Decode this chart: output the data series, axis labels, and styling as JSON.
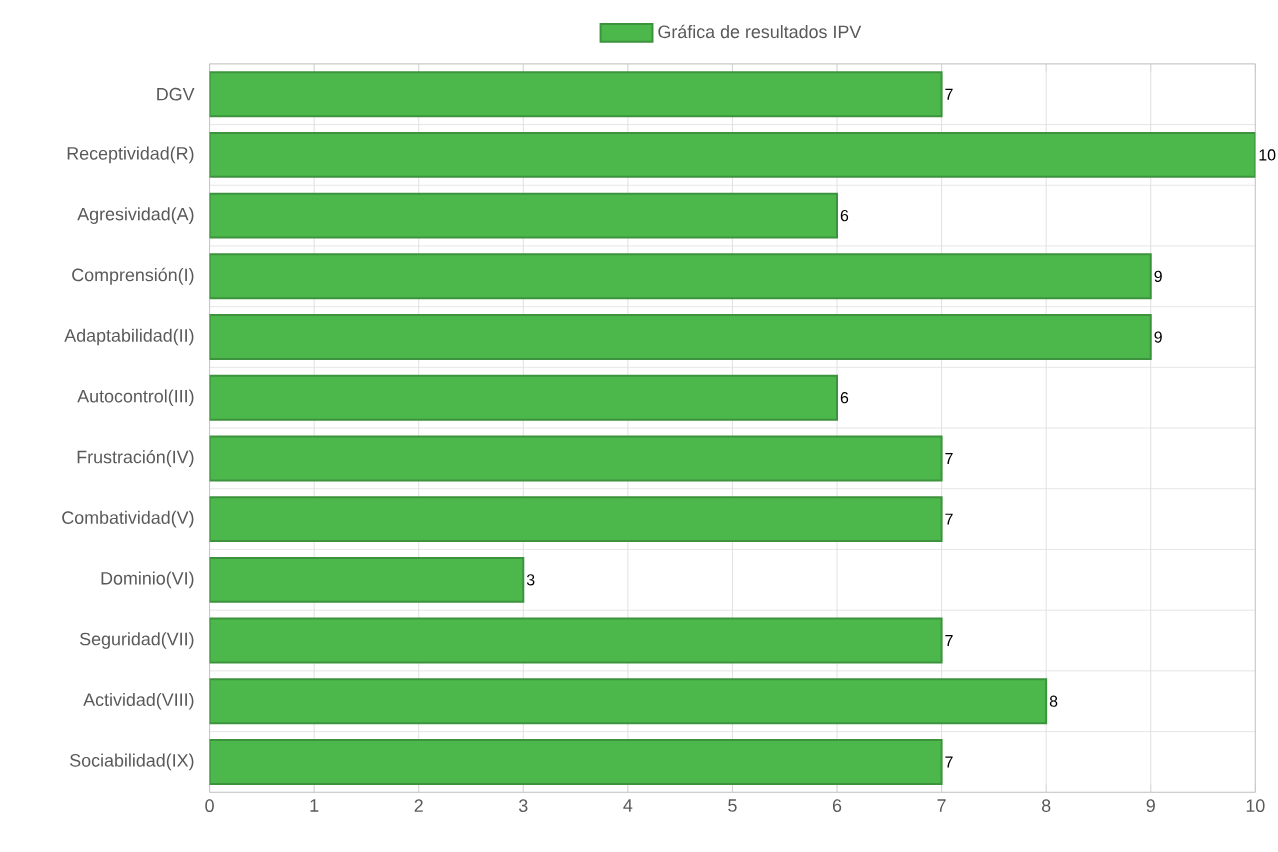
{
  "chart_data": {
    "type": "bar",
    "orientation": "horizontal",
    "categories": [
      "DGV",
      "Receptividad(R)",
      "Agresividad(A)",
      "Comprensión(I)",
      "Adaptabilidad(II)",
      "Autocontrol(III)",
      "Frustración(IV)",
      "Combatividad(V)",
      "Dominio(VI)",
      "Seguridad(VII)",
      "Actividad(VIII)",
      "Sociabilidad(IX)"
    ],
    "series": [
      {
        "name": "Gráfica de resultados IPV",
        "color": "#4cb84c",
        "values": [
          7,
          10,
          6,
          9,
          9,
          6,
          7,
          7,
          3,
          7,
          8,
          7
        ]
      }
    ],
    "xlim": [
      0,
      10
    ],
    "xticks": [
      0,
      1,
      2,
      3,
      4,
      5,
      6,
      7,
      8,
      9,
      10
    ],
    "grid": true,
    "legend": "top",
    "data_labels": true
  }
}
